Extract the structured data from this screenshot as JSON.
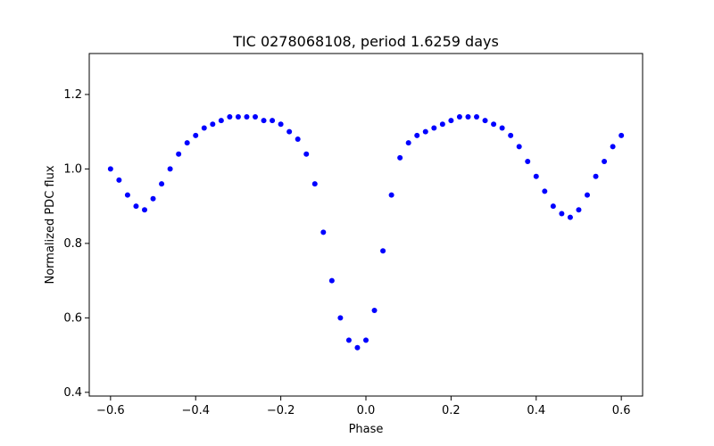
{
  "chart_data": {
    "type": "scatter",
    "title": "TIC 0278068108, period 1.6259 days",
    "xlabel": "Phase",
    "ylabel": "Normalized PDC flux",
    "xlim": [
      -0.65,
      0.65
    ],
    "ylim": [
      0.39,
      1.31
    ],
    "x_ticks": [
      -0.6,
      -0.4,
      -0.2,
      0.0,
      0.2,
      0.4,
      0.6
    ],
    "x_tick_labels": [
      "−0.6",
      "−0.4",
      "−0.2",
      "0.0",
      "0.2",
      "0.4",
      "0.6"
    ],
    "y_ticks": [
      0.4,
      0.6,
      0.8,
      1.0,
      1.2
    ],
    "y_tick_labels": [
      "0.4",
      "0.6",
      "0.8",
      "1.0",
      "1.2"
    ],
    "grid": false,
    "marker_color": "#0000ff",
    "series": [
      {
        "x": [
          -0.6,
          -0.58,
          -0.56,
          -0.54,
          -0.52,
          -0.5,
          -0.48,
          -0.46,
          -0.44,
          -0.42,
          -0.4,
          -0.38,
          -0.36,
          -0.34,
          -0.32,
          -0.3,
          -0.28,
          -0.26,
          -0.24,
          -0.22,
          -0.2,
          -0.18,
          -0.16,
          -0.14,
          -0.12,
          -0.1,
          -0.08,
          -0.06,
          -0.04,
          -0.02,
          0.0,
          0.02,
          0.04,
          0.06,
          0.08,
          0.1,
          0.12,
          0.14,
          0.16,
          0.18,
          0.2,
          0.22,
          0.24,
          0.26,
          0.28,
          0.3,
          0.32,
          0.34,
          0.36,
          0.38,
          0.4,
          0.42,
          0.44,
          0.46,
          0.48,
          0.5,
          0.52,
          0.54,
          0.56,
          0.58,
          0.6
        ],
        "y": [
          1.0,
          0.97,
          0.93,
          0.9,
          0.89,
          0.92,
          0.96,
          1.0,
          1.04,
          1.07,
          1.09,
          1.11,
          1.12,
          1.13,
          1.14,
          1.14,
          1.14,
          1.14,
          1.13,
          1.13,
          1.12,
          1.1,
          1.08,
          1.04,
          0.96,
          0.83,
          0.7,
          0.6,
          0.54,
          0.52,
          0.54,
          0.62,
          0.78,
          0.93,
          1.03,
          1.07,
          1.09,
          1.1,
          1.11,
          1.12,
          1.13,
          1.14,
          1.14,
          1.14,
          1.13,
          1.12,
          1.11,
          1.09,
          1.06,
          1.02,
          0.98,
          0.94,
          0.9,
          0.88,
          0.87,
          0.89,
          0.93,
          0.98,
          1.02,
          1.06,
          1.09
        ]
      }
    ]
  }
}
